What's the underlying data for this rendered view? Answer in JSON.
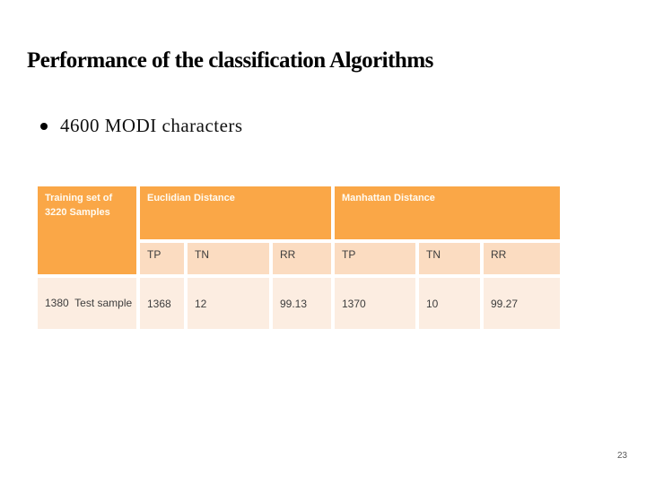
{
  "slide": {
    "title": "Performance of the classification Algorithms",
    "bullet_text": "4600 MODI characters",
    "page_number": "23"
  },
  "table": {
    "corner_header": "Training set of 3220 Samples",
    "group_headers": {
      "euclidian": "Euclidian Distance",
      "manhattan": "Manhattan Distance"
    },
    "sub_headers": [
      "TP",
      "TN",
      "RR",
      "TP",
      "TN",
      "RR"
    ],
    "row": {
      "label": "1380  Test sample",
      "values": [
        "1368",
        "12",
        "99.13",
        "1370",
        "10",
        "99.27"
      ]
    }
  },
  "colors": {
    "header_orange": "#FAA747",
    "subheader_fill": "#FBDCC1",
    "data_row_fill": "#FCEDE1",
    "header_text": "#FFFBF2",
    "body_text": "#3D3D3D",
    "page_number_gray": "#595959"
  }
}
